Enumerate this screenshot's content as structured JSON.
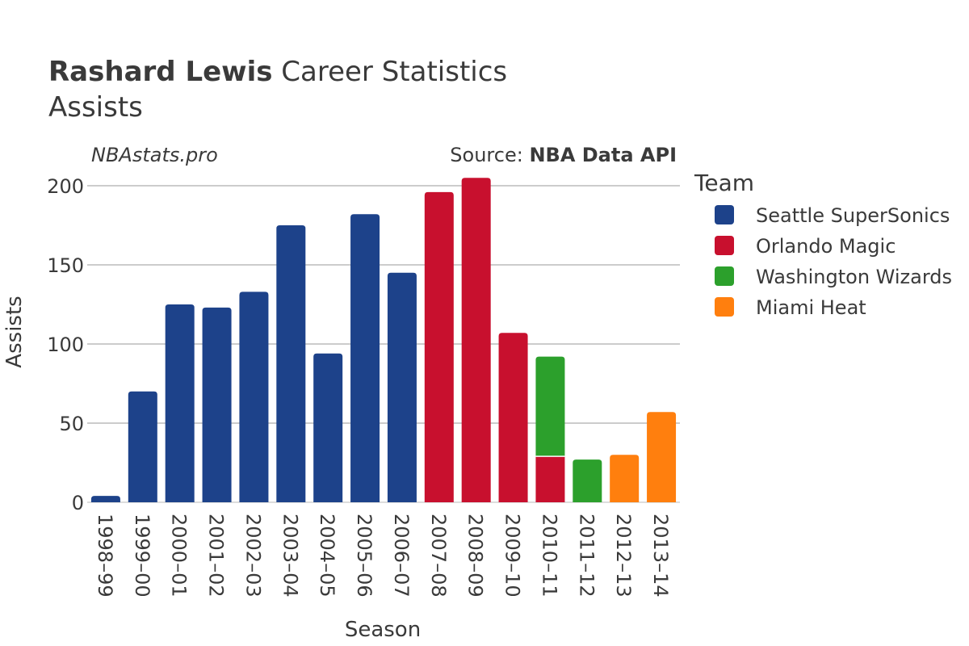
{
  "title": {
    "bold": "Rashard Lewis",
    "rest": " Career Statistics",
    "subtitle": "Assists"
  },
  "watermark": "NBAstats.pro",
  "source": {
    "prefix": "Source: ",
    "name": "NBA Data API"
  },
  "legend": {
    "title": "Team"
  },
  "colors": {
    "Seattle SuperSonics": "#1d428a",
    "Orlando Magic": "#c8102e",
    "Washington Wizards": "#2ca02c",
    "Miami Heat": "#ff7f0e",
    "grid": "#999999",
    "text": "#3a3a3a"
  },
  "chart_data": {
    "type": "bar",
    "stacked": true,
    "xlabel": "Season",
    "ylabel": "Assists",
    "ylim": [
      0,
      210
    ],
    "yticks": [
      0,
      50,
      100,
      150,
      200
    ],
    "grid": true,
    "legend_position": "right",
    "categories": [
      "1998–99",
      "1999–00",
      "2000–01",
      "2001–02",
      "2002–03",
      "2003–04",
      "2004–05",
      "2005–06",
      "2006–07",
      "2007–08",
      "2008–09",
      "2009–10",
      "2010–11",
      "2011–12",
      "2012–13",
      "2013–14"
    ],
    "series": [
      {
        "name": "Seattle SuperSonics",
        "values": [
          4,
          70,
          125,
          123,
          133,
          175,
          94,
          182,
          145,
          0,
          0,
          0,
          0,
          0,
          0,
          0
        ]
      },
      {
        "name": "Orlando Magic",
        "values": [
          0,
          0,
          0,
          0,
          0,
          0,
          0,
          0,
          0,
          196,
          205,
          107,
          29,
          0,
          0,
          0
        ]
      },
      {
        "name": "Washington Wizards",
        "values": [
          0,
          0,
          0,
          0,
          0,
          0,
          0,
          0,
          0,
          0,
          0,
          0,
          63,
          27,
          0,
          0
        ]
      },
      {
        "name": "Miami Heat",
        "values": [
          0,
          0,
          0,
          0,
          0,
          0,
          0,
          0,
          0,
          0,
          0,
          0,
          0,
          0,
          30,
          57
        ]
      }
    ]
  }
}
